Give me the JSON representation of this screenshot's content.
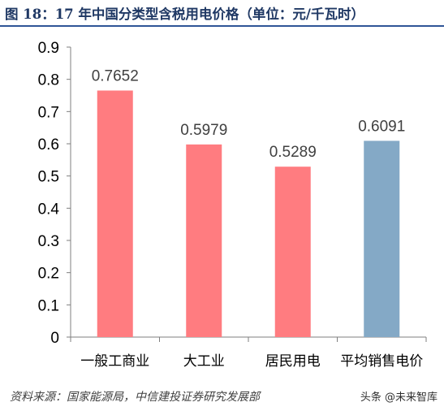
{
  "header": {
    "title": "图 18：17 年中国分类型含税用电价格（单位：元/千瓦时）"
  },
  "chart_data": {
    "type": "bar",
    "title": "",
    "xlabel": "",
    "ylabel": "",
    "categories": [
      "一般工商业",
      "大工业",
      "居民用电",
      "平均销售电价"
    ],
    "values": [
      0.7652,
      0.5979,
      0.5289,
      0.6091
    ],
    "value_labels": [
      "0.7652",
      "0.5979",
      "0.5289",
      "0.6091"
    ],
    "colors": [
      "#ff7c80",
      "#ff7c80",
      "#ff7c80",
      "#84a9c6"
    ],
    "ylim": [
      0,
      0.9
    ],
    "yticks": [
      0,
      0.1,
      0.2,
      0.3,
      0.4,
      0.5,
      0.6,
      0.7,
      0.8,
      0.9
    ],
    "ytick_labels": [
      "0",
      "0.1",
      "0.2",
      "0.3",
      "0.4",
      "0.5",
      "0.6",
      "0.7",
      "0.8",
      "0.9"
    ],
    "grid": false,
    "legend": "none"
  },
  "footer": {
    "source": "资料来源：国家能源局，中信建投证券研究发展部",
    "watermark": "头条 @未来智库"
  }
}
